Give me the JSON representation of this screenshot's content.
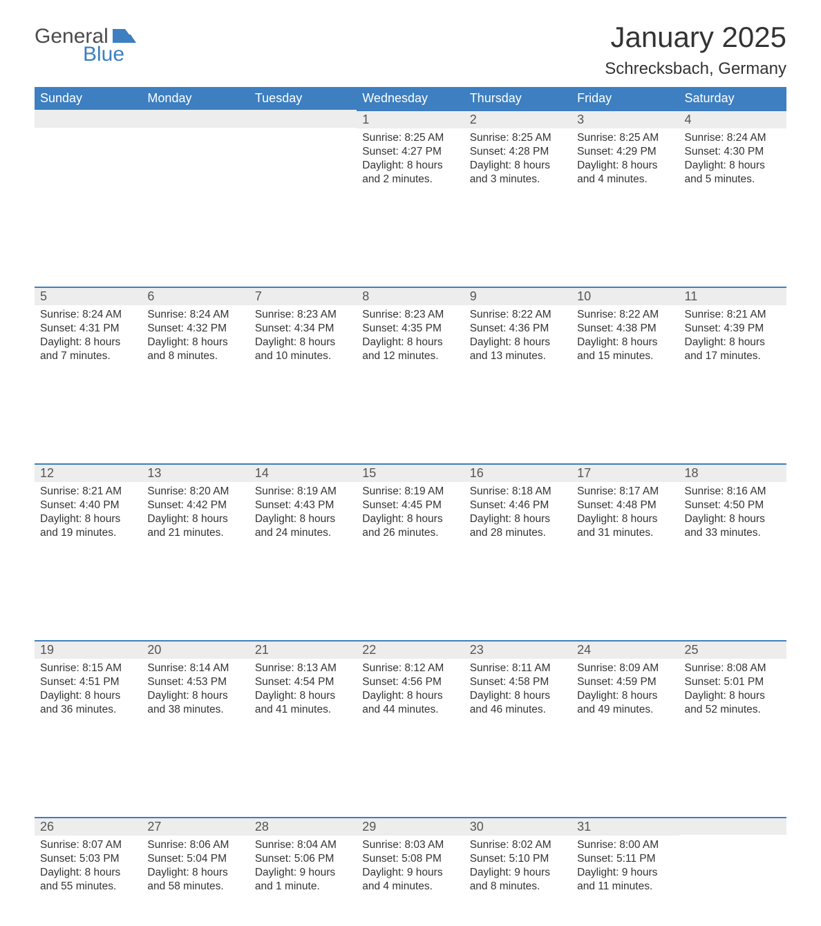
{
  "brand": {
    "line1": "General",
    "line2": "Blue",
    "flag_color": "#3d7fc0",
    "text_color": "#4b4b4b"
  },
  "title": "January 2025",
  "location": "Schrecksbach, Germany",
  "colors": {
    "header_bg": "#3d7fc0",
    "header_text": "#ffffff",
    "daynum_bg": "#ededed",
    "daynum_border": "#3d7fc0",
    "body_text": "#333333",
    "page_bg": "#ffffff"
  },
  "day_headers": [
    "Sunday",
    "Monday",
    "Tuesday",
    "Wednesday",
    "Thursday",
    "Friday",
    "Saturday"
  ],
  "weeks": [
    [
      {
        "n": "",
        "sr": "",
        "ss": "",
        "dl": ""
      },
      {
        "n": "",
        "sr": "",
        "ss": "",
        "dl": ""
      },
      {
        "n": "",
        "sr": "",
        "ss": "",
        "dl": ""
      },
      {
        "n": "1",
        "sr": "Sunrise: 8:25 AM",
        "ss": "Sunset: 4:27 PM",
        "dl": "Daylight: 8 hours and 2 minutes."
      },
      {
        "n": "2",
        "sr": "Sunrise: 8:25 AM",
        "ss": "Sunset: 4:28 PM",
        "dl": "Daylight: 8 hours and 3 minutes."
      },
      {
        "n": "3",
        "sr": "Sunrise: 8:25 AM",
        "ss": "Sunset: 4:29 PM",
        "dl": "Daylight: 8 hours and 4 minutes."
      },
      {
        "n": "4",
        "sr": "Sunrise: 8:24 AM",
        "ss": "Sunset: 4:30 PM",
        "dl": "Daylight: 8 hours and 5 minutes."
      }
    ],
    [
      {
        "n": "5",
        "sr": "Sunrise: 8:24 AM",
        "ss": "Sunset: 4:31 PM",
        "dl": "Daylight: 8 hours and 7 minutes."
      },
      {
        "n": "6",
        "sr": "Sunrise: 8:24 AM",
        "ss": "Sunset: 4:32 PM",
        "dl": "Daylight: 8 hours and 8 minutes."
      },
      {
        "n": "7",
        "sr": "Sunrise: 8:23 AM",
        "ss": "Sunset: 4:34 PM",
        "dl": "Daylight: 8 hours and 10 minutes."
      },
      {
        "n": "8",
        "sr": "Sunrise: 8:23 AM",
        "ss": "Sunset: 4:35 PM",
        "dl": "Daylight: 8 hours and 12 minutes."
      },
      {
        "n": "9",
        "sr": "Sunrise: 8:22 AM",
        "ss": "Sunset: 4:36 PM",
        "dl": "Daylight: 8 hours and 13 minutes."
      },
      {
        "n": "10",
        "sr": "Sunrise: 8:22 AM",
        "ss": "Sunset: 4:38 PM",
        "dl": "Daylight: 8 hours and 15 minutes."
      },
      {
        "n": "11",
        "sr": "Sunrise: 8:21 AM",
        "ss": "Sunset: 4:39 PM",
        "dl": "Daylight: 8 hours and 17 minutes."
      }
    ],
    [
      {
        "n": "12",
        "sr": "Sunrise: 8:21 AM",
        "ss": "Sunset: 4:40 PM",
        "dl": "Daylight: 8 hours and 19 minutes."
      },
      {
        "n": "13",
        "sr": "Sunrise: 8:20 AM",
        "ss": "Sunset: 4:42 PM",
        "dl": "Daylight: 8 hours and 21 minutes."
      },
      {
        "n": "14",
        "sr": "Sunrise: 8:19 AM",
        "ss": "Sunset: 4:43 PM",
        "dl": "Daylight: 8 hours and 24 minutes."
      },
      {
        "n": "15",
        "sr": "Sunrise: 8:19 AM",
        "ss": "Sunset: 4:45 PM",
        "dl": "Daylight: 8 hours and 26 minutes."
      },
      {
        "n": "16",
        "sr": "Sunrise: 8:18 AM",
        "ss": "Sunset: 4:46 PM",
        "dl": "Daylight: 8 hours and 28 minutes."
      },
      {
        "n": "17",
        "sr": "Sunrise: 8:17 AM",
        "ss": "Sunset: 4:48 PM",
        "dl": "Daylight: 8 hours and 31 minutes."
      },
      {
        "n": "18",
        "sr": "Sunrise: 8:16 AM",
        "ss": "Sunset: 4:50 PM",
        "dl": "Daylight: 8 hours and 33 minutes."
      }
    ],
    [
      {
        "n": "19",
        "sr": "Sunrise: 8:15 AM",
        "ss": "Sunset: 4:51 PM",
        "dl": "Daylight: 8 hours and 36 minutes."
      },
      {
        "n": "20",
        "sr": "Sunrise: 8:14 AM",
        "ss": "Sunset: 4:53 PM",
        "dl": "Daylight: 8 hours and 38 minutes."
      },
      {
        "n": "21",
        "sr": "Sunrise: 8:13 AM",
        "ss": "Sunset: 4:54 PM",
        "dl": "Daylight: 8 hours and 41 minutes."
      },
      {
        "n": "22",
        "sr": "Sunrise: 8:12 AM",
        "ss": "Sunset: 4:56 PM",
        "dl": "Daylight: 8 hours and 44 minutes."
      },
      {
        "n": "23",
        "sr": "Sunrise: 8:11 AM",
        "ss": "Sunset: 4:58 PM",
        "dl": "Daylight: 8 hours and 46 minutes."
      },
      {
        "n": "24",
        "sr": "Sunrise: 8:09 AM",
        "ss": "Sunset: 4:59 PM",
        "dl": "Daylight: 8 hours and 49 minutes."
      },
      {
        "n": "25",
        "sr": "Sunrise: 8:08 AM",
        "ss": "Sunset: 5:01 PM",
        "dl": "Daylight: 8 hours and 52 minutes."
      }
    ],
    [
      {
        "n": "26",
        "sr": "Sunrise: 8:07 AM",
        "ss": "Sunset: 5:03 PM",
        "dl": "Daylight: 8 hours and 55 minutes."
      },
      {
        "n": "27",
        "sr": "Sunrise: 8:06 AM",
        "ss": "Sunset: 5:04 PM",
        "dl": "Daylight: 8 hours and 58 minutes."
      },
      {
        "n": "28",
        "sr": "Sunrise: 8:04 AM",
        "ss": "Sunset: 5:06 PM",
        "dl": "Daylight: 9 hours and 1 minute."
      },
      {
        "n": "29",
        "sr": "Sunrise: 8:03 AM",
        "ss": "Sunset: 5:08 PM",
        "dl": "Daylight: 9 hours and 4 minutes."
      },
      {
        "n": "30",
        "sr": "Sunrise: 8:02 AM",
        "ss": "Sunset: 5:10 PM",
        "dl": "Daylight: 9 hours and 8 minutes."
      },
      {
        "n": "31",
        "sr": "Sunrise: 8:00 AM",
        "ss": "Sunset: 5:11 PM",
        "dl": "Daylight: 9 hours and 11 minutes."
      },
      {
        "n": "",
        "sr": "",
        "ss": "",
        "dl": ""
      }
    ]
  ]
}
